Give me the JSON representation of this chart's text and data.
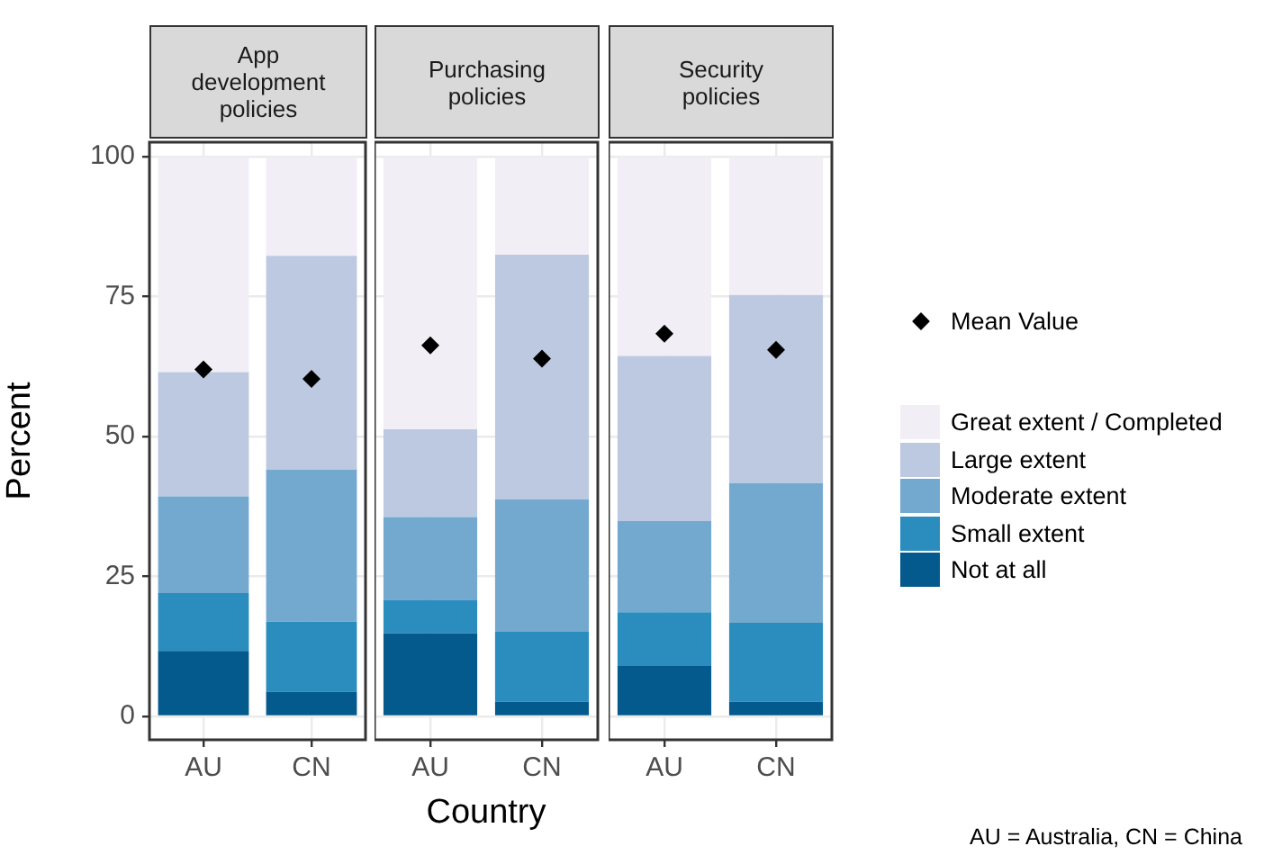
{
  "chart_data": [
    {
      "type": "bar",
      "title": "App development policies",
      "ylabel": "Percent",
      "categories": [
        "AU",
        "CN"
      ],
      "stacked": true,
      "ylim": [
        -4.2,
        102.6
      ],
      "yticks": [
        0,
        25,
        50,
        75,
        100
      ],
      "grid": true,
      "series": [
        {
          "color": "#045a8d",
          "values": [
            11.7,
            4.4
          ]
        },
        {
          "color": "#2b8cbe",
          "values": [
            10.3,
            12.5
          ]
        },
        {
          "color": "#74a9cf",
          "values": [
            17.3,
            27.2
          ]
        },
        {
          "color": "#bdc9e1",
          "values": [
            22.2,
            38.2
          ]
        },
        {
          "color": "#f1eef6",
          "values": [
            38.5,
            17.7
          ]
        },
        {
          "type": "scatter",
          "marker": "diamond",
          "color": "#000000",
          "x": [
            "AU",
            "CN"
          ],
          "values": [
            62,
            60.3
          ]
        }
      ]
    },
    {
      "type": "bar",
      "title": "Purchasing policies",
      "xlabel": "Country",
      "categories": [
        "AU",
        "CN"
      ],
      "stacked": true,
      "ylim": [
        -4.2,
        102.6
      ],
      "yticks": [
        0,
        25,
        50,
        75,
        100
      ],
      "grid": true,
      "tick_labels": "x",
      "series": [
        {
          "color": "#045a8d",
          "values": [
            14.8,
            2.6
          ]
        },
        {
          "color": "#2b8cbe",
          "values": [
            6.0,
            12.5
          ]
        },
        {
          "color": "#74a9cf",
          "values": [
            14.8,
            23.7
          ]
        },
        {
          "color": "#bdc9e1",
          "values": [
            15.7,
            43.7
          ]
        },
        {
          "color": "#f1eef6",
          "values": [
            48.7,
            17.5
          ]
        },
        {
          "type": "scatter",
          "marker": "diamond",
          "color": "#000000",
          "x": [
            "AU",
            "CN"
          ],
          "values": [
            66.3,
            63.9
          ]
        }
      ]
    },
    {
      "type": "bar",
      "title": "Security policies",
      "categories": [
        "AU",
        "CN"
      ],
      "stacked": true,
      "ylim": [
        -4.2,
        102.6
      ],
      "yticks": [
        0,
        25,
        50,
        75,
        100
      ],
      "grid": true,
      "tick_labels": "x",
      "legend": "right",
      "annotations": [
        "AU = Australia, CN = China"
      ],
      "series": [
        {
          "name": "Not at all",
          "color": "#045a8d",
          "values": [
            9.0,
            2.6
          ]
        },
        {
          "name": "Small extent",
          "color": "#2b8cbe",
          "values": [
            9.6,
            14.1
          ]
        },
        {
          "name": "Moderate extent",
          "color": "#74a9cf",
          "values": [
            16.3,
            25.0
          ]
        },
        {
          "name": "Large extent",
          "color": "#bdc9e1",
          "values": [
            29.5,
            33.6
          ]
        },
        {
          "name": "Great extent / Completed",
          "color": "#f1eef6",
          "values": [
            35.6,
            24.7
          ]
        },
        {
          "name": "Mean Value",
          "type": "scatter",
          "marker": "diamond",
          "color": "#000000",
          "x": [
            "AU",
            "CN"
          ],
          "values": [
            68.4,
            65.5
          ]
        }
      ]
    }
  ]
}
